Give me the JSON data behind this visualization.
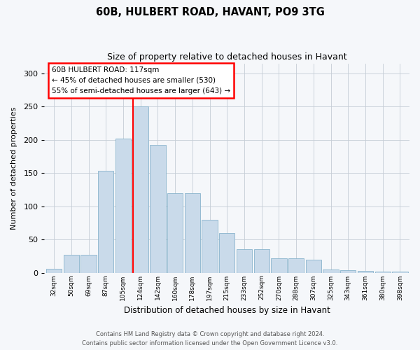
{
  "title": "60B, HULBERT ROAD, HAVANT, PO9 3TG",
  "subtitle": "Size of property relative to detached houses in Havant",
  "xlabel": "Distribution of detached houses by size in Havant",
  "ylabel": "Number of detached properties",
  "footer_line1": "Contains HM Land Registry data © Crown copyright and database right 2024.",
  "footer_line2": "Contains public sector information licensed under the Open Government Licence v3.0.",
  "property_line": "60B HULBERT ROAD: 117sqm",
  "annotation_line2": "← 45% of detached houses are smaller (530)",
  "annotation_line3": "55% of semi-detached houses are larger (643) →",
  "bar_color": "#c9daea",
  "bar_edge_color": "#8ab4cc",
  "vline_color": "red",
  "categories": [
    "32sqm",
    "50sqm",
    "69sqm",
    "87sqm",
    "105sqm",
    "124sqm",
    "142sqm",
    "160sqm",
    "178sqm",
    "197sqm",
    "215sqm",
    "233sqm",
    "252sqm",
    "270sqm",
    "288sqm",
    "307sqm",
    "325sqm",
    "343sqm",
    "361sqm",
    "380sqm",
    "398sqm"
  ],
  "values": [
    6,
    27,
    27,
    153,
    202,
    250,
    192,
    120,
    120,
    80,
    60,
    35,
    35,
    22,
    22,
    20,
    5,
    4,
    3,
    2,
    2
  ],
  "ylim": [
    0,
    315
  ],
  "yticks": [
    0,
    50,
    100,
    150,
    200,
    250,
    300
  ],
  "vline_x": 4.58,
  "background_color": "#f5f7fa",
  "grid_color": "#c5cdd5"
}
